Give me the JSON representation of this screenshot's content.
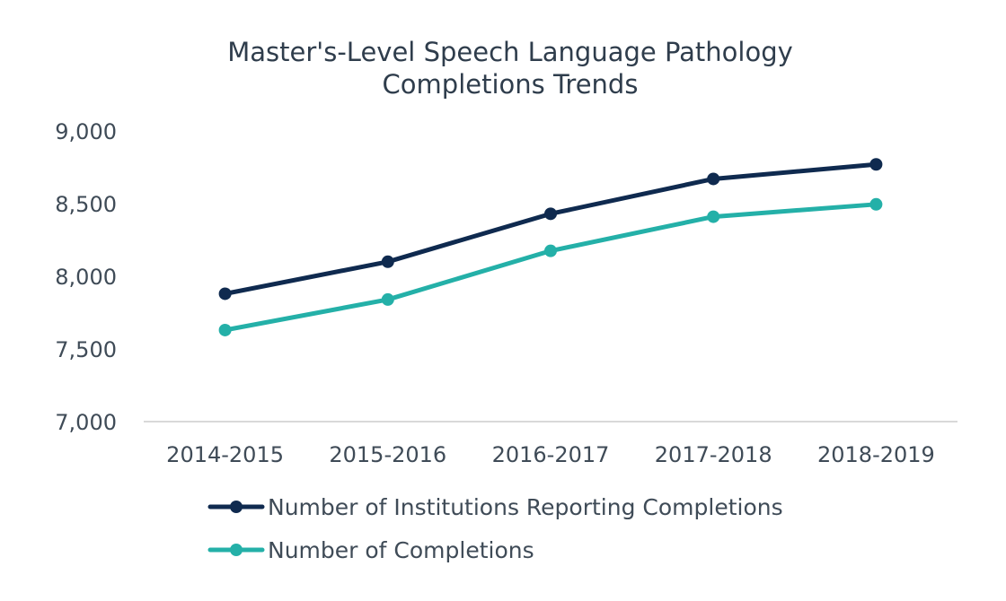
{
  "chart_data": {
    "type": "line",
    "title": [
      "Master's-Level Speech Language Pathology",
      "Completions Trends"
    ],
    "xlabel": "",
    "ylabel": "",
    "categories": [
      "2014-2015",
      "2015-2016",
      "2016-2017",
      "2017-2018",
      "2018-2019"
    ],
    "ylim": [
      7000,
      9000
    ],
    "yticks": [
      7000,
      7500,
      8000,
      8500,
      9000
    ],
    "ytick_labels": [
      "7,000",
      "7,500",
      "8,000",
      "8,500",
      "9,000"
    ],
    "grid": false,
    "legend_position": "bottom-left",
    "series": [
      {
        "name": "Number of Institutions Reporting Completions",
        "values": [
          7880,
          8100,
          8430,
          8670,
          8770
        ],
        "color": "#0f2a4f"
      },
      {
        "name": "Number of Completions",
        "values": [
          7630,
          7840,
          8175,
          8410,
          8495
        ],
        "color": "#24b0a8"
      }
    ],
    "axis_color": "#d9d9d9"
  }
}
